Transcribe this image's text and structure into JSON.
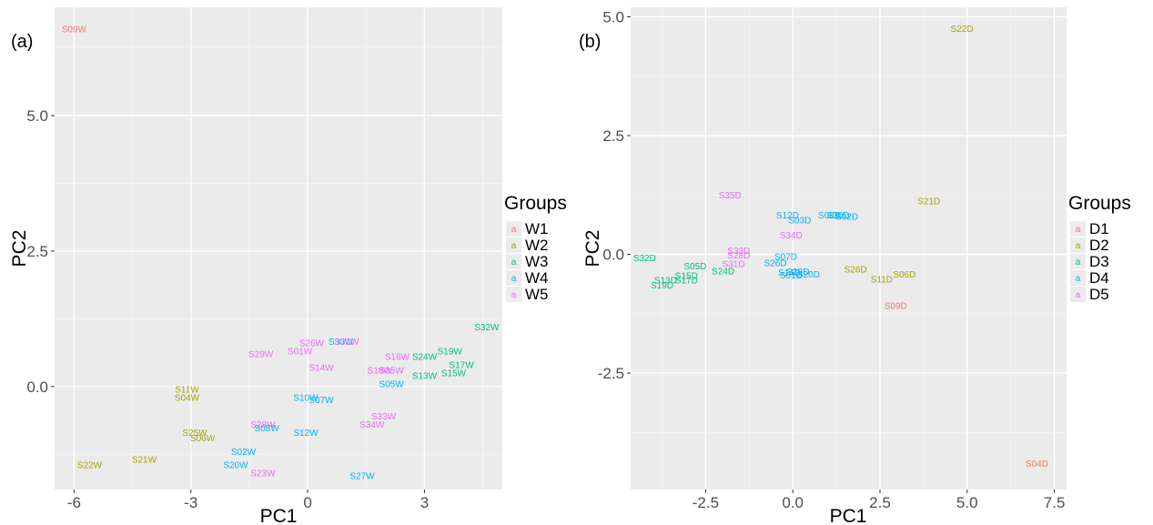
{
  "colors": {
    "panel_bg": "#ebebeb",
    "grid_major": "#ffffff",
    "grid_minor": "#f4f4f4",
    "groups": {
      "1": "#F8766D",
      "2": "#A3A500",
      "3": "#00BF7D",
      "4": "#00B0F6",
      "5": "#E76BF3"
    }
  },
  "chart_data": [
    {
      "type": "scatter",
      "panel_label": "(a)",
      "xlabel": "PC1",
      "ylabel": "PC2",
      "xlim": [
        -6.5,
        5.0
      ],
      "ylim": [
        -1.9,
        7.0
      ],
      "x_ticks": [
        -6,
        -3,
        0,
        3
      ],
      "x_tick_labels": [
        "-6",
        "-3",
        "0",
        "3"
      ],
      "y_ticks": [
        0.0,
        2.5,
        5.0
      ],
      "y_tick_labels": [
        "0.0",
        "2.5",
        "5.0"
      ],
      "legend": {
        "title": "Groups",
        "key_glyph": "a",
        "entries": [
          {
            "group": "1",
            "label": "W1"
          },
          {
            "group": "2",
            "label": "W2"
          },
          {
            "group": "3",
            "label": "W3"
          },
          {
            "group": "4",
            "label": "W4"
          },
          {
            "group": "5",
            "label": "W5"
          }
        ]
      },
      "points": [
        {
          "label": "S09W",
          "x": -6.0,
          "y": 6.6,
          "group": "1"
        },
        {
          "label": "S22W",
          "x": -5.6,
          "y": -1.45,
          "group": "2"
        },
        {
          "label": "S21W",
          "x": -4.2,
          "y": -1.35,
          "group": "2"
        },
        {
          "label": "S11W",
          "x": -3.1,
          "y": -0.05,
          "group": "2"
        },
        {
          "label": "S04W",
          "x": -3.1,
          "y": -0.2,
          "group": "2"
        },
        {
          "label": "S25W",
          "x": -2.9,
          "y": -0.85,
          "group": "2"
        },
        {
          "label": "S06W",
          "x": -2.7,
          "y": -0.95,
          "group": "2"
        },
        {
          "label": "S02W",
          "x": -1.65,
          "y": -1.2,
          "group": "4"
        },
        {
          "label": "S20W",
          "x": -1.85,
          "y": -1.45,
          "group": "4"
        },
        {
          "label": "S28W",
          "x": -1.15,
          "y": -0.7,
          "group": "5"
        },
        {
          "label": "S08W",
          "x": -1.05,
          "y": -0.77,
          "group": "4"
        },
        {
          "label": "S23W",
          "x": -1.15,
          "y": -1.6,
          "group": "5"
        },
        {
          "label": "S29W",
          "x": -1.2,
          "y": 0.6,
          "group": "5"
        },
        {
          "label": "S01W",
          "x": -0.2,
          "y": 0.65,
          "group": "5"
        },
        {
          "label": "S26W",
          "x": 0.1,
          "y": 0.8,
          "group": "5"
        },
        {
          "label": "S30W",
          "x": 0.85,
          "y": 0.83,
          "group": "4"
        },
        {
          "label": "S31W",
          "x": 1.0,
          "y": 0.83,
          "group": "5"
        },
        {
          "label": "S14W",
          "x": 0.35,
          "y": 0.35,
          "group": "5"
        },
        {
          "label": "S10W",
          "x": -0.05,
          "y": -0.2,
          "group": "4"
        },
        {
          "label": "S07W",
          "x": 0.35,
          "y": -0.25,
          "group": "4"
        },
        {
          "label": "S12W",
          "x": -0.05,
          "y": -0.85,
          "group": "4"
        },
        {
          "label": "S27W",
          "x": 1.4,
          "y": -1.65,
          "group": "4"
        },
        {
          "label": "S16W",
          "x": 2.3,
          "y": 0.55,
          "group": "5"
        },
        {
          "label": "S18W",
          "x": 1.85,
          "y": 0.3,
          "group": "5"
        },
        {
          "label": "S35W",
          "x": 2.15,
          "y": 0.3,
          "group": "5"
        },
        {
          "label": "S05W",
          "x": 2.15,
          "y": 0.05,
          "group": "4"
        },
        {
          "label": "S33W",
          "x": 1.95,
          "y": -0.55,
          "group": "5"
        },
        {
          "label": "S34W",
          "x": 1.65,
          "y": -0.7,
          "group": "5"
        },
        {
          "label": "S24W",
          "x": 3.0,
          "y": 0.55,
          "group": "3"
        },
        {
          "label": "S19W",
          "x": 3.65,
          "y": 0.65,
          "group": "3"
        },
        {
          "label": "S13W",
          "x": 3.0,
          "y": 0.2,
          "group": "3"
        },
        {
          "label": "S17W",
          "x": 3.95,
          "y": 0.4,
          "group": "3"
        },
        {
          "label": "S15W",
          "x": 3.75,
          "y": 0.25,
          "group": "3"
        },
        {
          "label": "S32W",
          "x": 4.6,
          "y": 1.1,
          "group": "3"
        }
      ]
    },
    {
      "type": "scatter",
      "panel_label": "(b)",
      "xlabel": "PC1",
      "ylabel": "PC2",
      "xlim": [
        -4.65,
        7.85
      ],
      "ylim": [
        -4.95,
        5.2
      ],
      "x_ticks": [
        -2.5,
        0.0,
        2.5,
        5.0,
        7.5
      ],
      "x_tick_labels": [
        "-2.5",
        "0.0",
        "2.5",
        "5.0",
        "7.5"
      ],
      "y_ticks": [
        -2.5,
        0.0,
        2.5,
        5.0
      ],
      "y_tick_labels": [
        "-2.5",
        "0.0",
        "2.5",
        "5.0"
      ],
      "legend": {
        "title": "Groups",
        "key_glyph": "a",
        "entries": [
          {
            "group": "1",
            "label": "D1"
          },
          {
            "group": "2",
            "label": "D2"
          },
          {
            "group": "3",
            "label": "D3"
          },
          {
            "group": "4",
            "label": "D4"
          },
          {
            "group": "5",
            "label": "D5"
          }
        ]
      },
      "points": [
        {
          "label": "S22D",
          "x": 4.85,
          "y": 4.75,
          "group": "2"
        },
        {
          "label": "S04D",
          "x": 7.0,
          "y": -4.4,
          "group": "1"
        },
        {
          "label": "S21D",
          "x": 3.9,
          "y": 1.12,
          "group": "2"
        },
        {
          "label": "S35D",
          "x": -1.8,
          "y": 1.25,
          "group": "5"
        },
        {
          "label": "S12D",
          "x": -0.15,
          "y": 0.82,
          "group": "4"
        },
        {
          "label": "S08D",
          "x": 1.05,
          "y": 0.82,
          "group": "4"
        },
        {
          "label": "S30D",
          "x": 1.3,
          "y": 0.82,
          "group": "4"
        },
        {
          "label": "S02D",
          "x": 1.55,
          "y": 0.8,
          "group": "4"
        },
        {
          "label": "S03D",
          "x": 0.2,
          "y": 0.72,
          "group": "4"
        },
        {
          "label": "S34D",
          "x": -0.05,
          "y": 0.4,
          "group": "5"
        },
        {
          "label": "S33D",
          "x": -1.55,
          "y": 0.08,
          "group": "5"
        },
        {
          "label": "S28D",
          "x": -1.55,
          "y": -0.02,
          "group": "5"
        },
        {
          "label": "S31D",
          "x": -1.7,
          "y": -0.2,
          "group": "5"
        },
        {
          "label": "S07D",
          "x": -0.2,
          "y": -0.05,
          "group": "4"
        },
        {
          "label": "S26D",
          "x": -0.5,
          "y": -0.18,
          "group": "4"
        },
        {
          "label": "S14D",
          "x": -0.1,
          "y": -0.38,
          "group": "4"
        },
        {
          "label": "S01D",
          "x": -0.05,
          "y": -0.44,
          "group": "4"
        },
        {
          "label": "S29D",
          "x": 0.15,
          "y": -0.36,
          "group": "4"
        },
        {
          "label": "S20D",
          "x": 0.45,
          "y": -0.42,
          "group": "4"
        },
        {
          "label": "S32D",
          "x": -4.25,
          "y": -0.08,
          "group": "3"
        },
        {
          "label": "S05D",
          "x": -2.8,
          "y": -0.25,
          "group": "3"
        },
        {
          "label": "S24D",
          "x": -2.0,
          "y": -0.35,
          "group": "3"
        },
        {
          "label": "S15D",
          "x": -3.05,
          "y": -0.45,
          "group": "3"
        },
        {
          "label": "S17D",
          "x": -3.05,
          "y": -0.55,
          "group": "3"
        },
        {
          "label": "S13D",
          "x": -3.65,
          "y": -0.55,
          "group": "3"
        },
        {
          "label": "S19D",
          "x": -3.75,
          "y": -0.65,
          "group": "3"
        },
        {
          "label": "S26D",
          "x": 1.8,
          "y": -0.32,
          "group": "2"
        },
        {
          "label": "S06D",
          "x": 3.2,
          "y": -0.42,
          "group": "2"
        },
        {
          "label": "S11D",
          "x": 2.55,
          "y": -0.53,
          "group": "2"
        },
        {
          "label": "S09D",
          "x": 2.95,
          "y": -1.08,
          "group": "1"
        }
      ]
    }
  ]
}
